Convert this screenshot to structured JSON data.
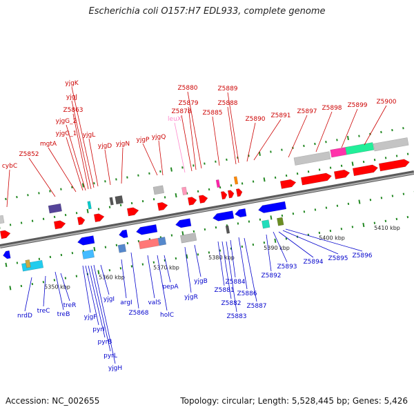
{
  "title": "Escherichia coli O157:H7 EDL933, complete genome",
  "footer": {
    "accession": "Accession: NC_002655",
    "topology": "Topology: circular; Length: 5,528,445 bp; Genes: 5,426"
  },
  "colors": {
    "forward_label": "#cc0000",
    "reverse_label": "#0000cc",
    "rna_label": "#ff88cc",
    "forward_arrow": "#ff0000",
    "reverse_arrow": "#0000ff",
    "backbone": "#808080",
    "ticks": "#228822"
  },
  "scale": {
    "ticks": [
      "5350 kbp",
      "5360 kbp",
      "5370 kbp",
      "5380 kbp",
      "5390 kbp",
      "5400 kbp",
      "5410 kbp"
    ]
  },
  "genes": {
    "forward_top": [
      "cybC",
      "Z5852",
      "mgtA",
      "yjgG_1",
      "yjgG_2",
      "Z5863",
      "yjgJ",
      "yjgK",
      "yjgL",
      "yjgD",
      "yjgN",
      "yjgP",
      "yjgQ",
      "Z5878",
      "Z5879",
      "Z5880",
      "Z5885",
      "Z5888",
      "Z5889",
      "Z5890",
      "Z5891",
      "Z5897",
      "Z5898",
      "Z5899",
      "Z5900"
    ],
    "rna_top": [
      "leuX"
    ],
    "reverse_bottom": [
      "nrdD",
      "treC",
      "treB",
      "treR",
      "yjgF",
      "pyrI",
      "pyrB",
      "pyrL",
      "yjgH",
      "yjgI",
      "argI",
      "Z5868",
      "valS",
      "holC",
      "pepA",
      "yjgR",
      "yjgB",
      "Z5881",
      "Z5882",
      "Z5883",
      "Z5884",
      "Z5886",
      "Z5887",
      "Z5892",
      "Z5893",
      "Z5894",
      "Z5895",
      "Z5896"
    ]
  }
}
